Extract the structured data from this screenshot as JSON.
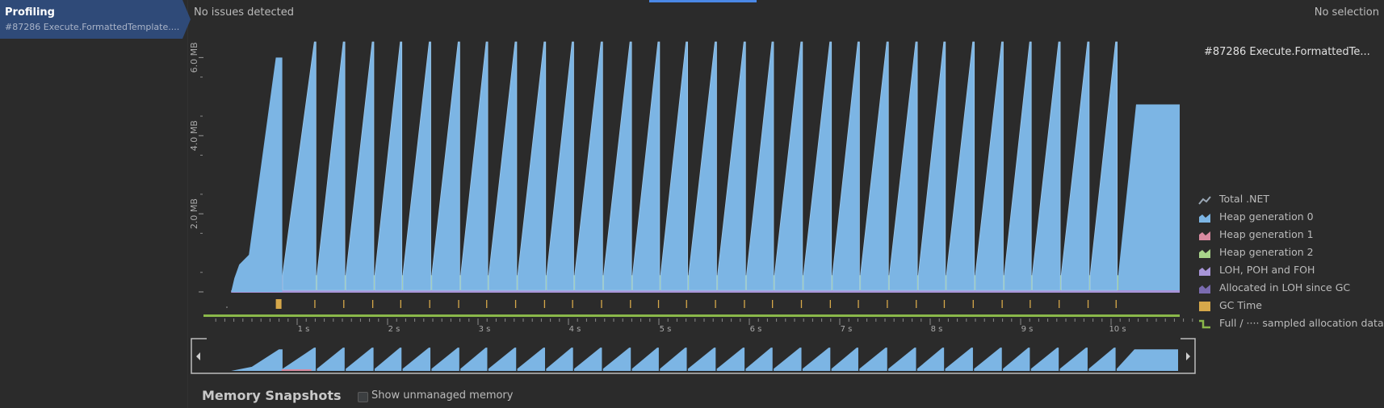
{
  "session": {
    "title": "Profiling",
    "subtitle": "#87286 Execute.FormattedTemplate...."
  },
  "status": {
    "issues": "No issues detected",
    "selection": "No selection"
  },
  "details": {
    "title": "#87286 Execute.FormattedTe..."
  },
  "colors": {
    "gen0": "#7cb5e4",
    "gen1": "#d88aa0",
    "gen2": "#a8d48a",
    "loh": "#a895d8",
    "loh_allocated": "#7a6bb0",
    "gc_time": "#d6a84a",
    "full_data": "#8ab84a",
    "total_net": "#9aa7b5"
  },
  "legend": [
    {
      "label": "Total .NET",
      "icon": "total-net-icon"
    },
    {
      "label": "Heap generation 0",
      "icon": "heap-gen0-icon"
    },
    {
      "label": "Heap generation 1",
      "icon": "heap-gen1-icon"
    },
    {
      "label": "Heap generation 2",
      "icon": "heap-gen2-icon"
    },
    {
      "label": "LOH, POH and FOH",
      "icon": "loh-icon"
    },
    {
      "label": "Allocated in LOH since GC",
      "icon": "loh-allocated-icon"
    },
    {
      "label": "GC Time",
      "icon": "gc-time-icon"
    },
    {
      "label": "Full / ···· sampled allocation data",
      "icon": "full-data-icon"
    }
  ],
  "chart_data": {
    "type": "area",
    "ylabel": "",
    "y_ticks": [
      "2.0 MB",
      "4.0 MB",
      "6.0 MB"
    ],
    "x_ticks": [
      "1 s",
      "2 s",
      "3 s",
      "4 s",
      "5 s",
      "6 s",
      "7 s",
      "8 s",
      "9 s",
      "10 s"
    ],
    "x_range_s": [
      0,
      10.9
    ],
    "y_range_mb": [
      0,
      6.4
    ],
    "first_rise": {
      "start_s": 0.27,
      "end_s": 0.8,
      "peak_mb": 6.0
    },
    "cycle_peaks_s": [
      1.19,
      1.51,
      1.83,
      2.14,
      2.46,
      2.78,
      3.09,
      3.41,
      3.73,
      4.04,
      4.36,
      4.68,
      4.99,
      5.3,
      5.62,
      5.94,
      6.25,
      6.57,
      6.89,
      7.2,
      7.52,
      7.84,
      8.15,
      8.47,
      8.79,
      9.1,
      9.42,
      9.74,
      10.05
    ],
    "cycle_peak_mb": 6.4,
    "baseline_mb": 0.45,
    "final_plateau": {
      "start_s": 10.05,
      "end_s": 10.9,
      "level_mb": 4.8
    },
    "gen1_band_s": [
      0.83,
      1.16
    ],
    "gen2_band_s": [
      1.16,
      10.9
    ],
    "gc_time_markers_s": [
      0.8,
      1.19,
      1.51,
      1.83,
      2.14,
      2.46,
      2.78,
      3.09,
      3.41,
      3.73,
      4.04,
      4.36,
      4.68,
      4.99,
      5.3,
      5.62,
      5.94,
      6.25,
      6.57,
      6.89,
      7.2,
      7.52,
      7.84,
      8.15,
      8.47,
      8.79,
      9.1,
      9.42,
      9.74,
      10.05
    ],
    "grid": false,
    "legend_placement": "right"
  },
  "snapshots": {
    "title": "Memory Snapshots",
    "show_unmanaged_label": "Show unmanaged memory"
  }
}
